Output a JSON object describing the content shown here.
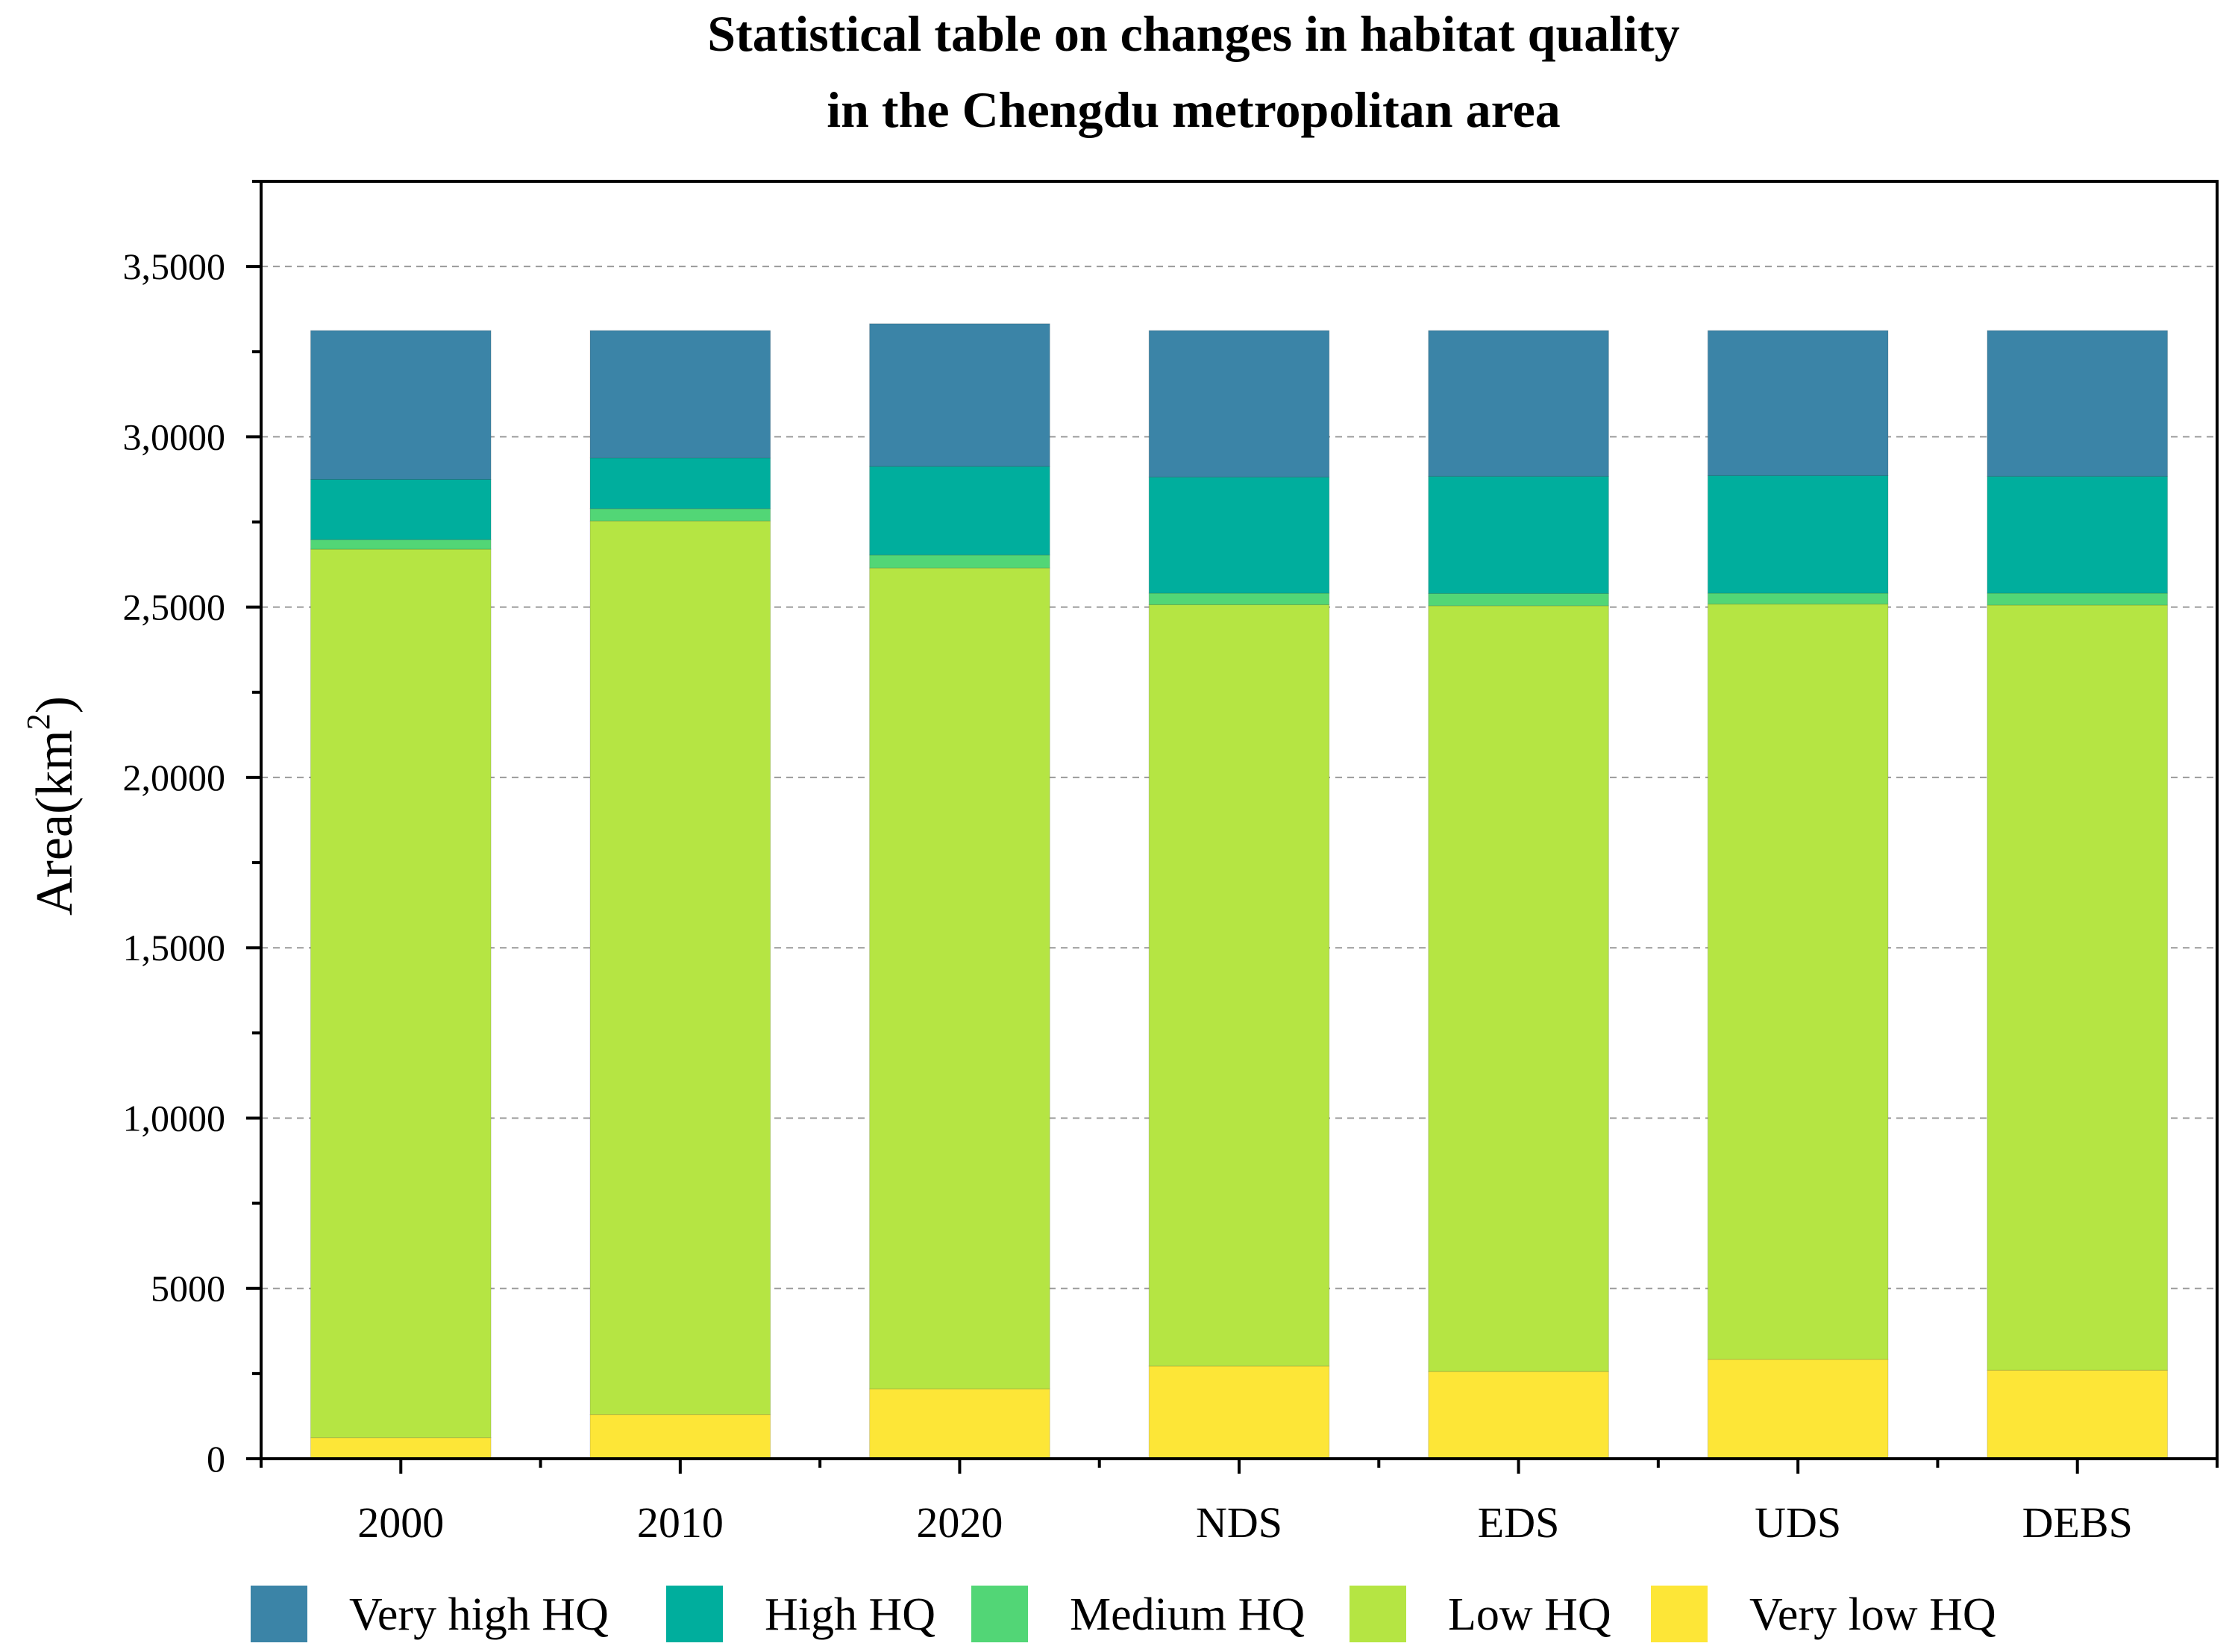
{
  "chart_data": {
    "type": "bar",
    "stacked": true,
    "title_lines": [
      "Statistical table on changes in habitat quality",
      "in the Chengdu metropolitan area"
    ],
    "xlabel": "",
    "ylabel": "Area(km",
    "ylabel_sup": "2",
    "ylabel_close": ")",
    "ylim": [
      0,
      37500
    ],
    "grid": true,
    "legend_position": "bottom",
    "categories": [
      "2000",
      "2010",
      "2020",
      "NDS",
      "EDS",
      "UDS",
      "DEBS"
    ],
    "yticks": [
      {
        "value": 0,
        "label": "0"
      },
      {
        "value": 5000,
        "label": "5000"
      },
      {
        "value": 10000,
        "label": "1,0000"
      },
      {
        "value": 15000,
        "label": "1,5000"
      },
      {
        "value": 20000,
        "label": "2,0000"
      },
      {
        "value": 25000,
        "label": "2,5000"
      },
      {
        "value": 30000,
        "label": "3,0000"
      },
      {
        "value": 35000,
        "label": "3,5000"
      }
    ],
    "series": [
      {
        "name": "Very low HQ",
        "color": "#fde637",
        "values": [
          620,
          1300,
          2050,
          2720,
          2560,
          2920,
          2600
        ]
      },
      {
        "name": "Low HQ",
        "color": "#b5e543",
        "values": [
          26080,
          26230,
          24100,
          22350,
          22480,
          22170,
          22460
        ]
      },
      {
        "name": "Medium HQ",
        "color": "#52d676",
        "values": [
          280,
          360,
          380,
          340,
          360,
          320,
          350
        ]
      },
      {
        "name": "High HQ",
        "color": "#00ae9d",
        "values": [
          1770,
          1490,
          2600,
          3410,
          3440,
          3450,
          3430
        ]
      },
      {
        "name": "Very high HQ",
        "color": "#3b84a7",
        "values": [
          4370,
          3740,
          4190,
          4300,
          4280,
          4260,
          4280
        ]
      }
    ],
    "legend_order": [
      "Very high HQ",
      "High HQ",
      "Medium HQ",
      "Low HQ",
      "Very low HQ"
    ]
  }
}
